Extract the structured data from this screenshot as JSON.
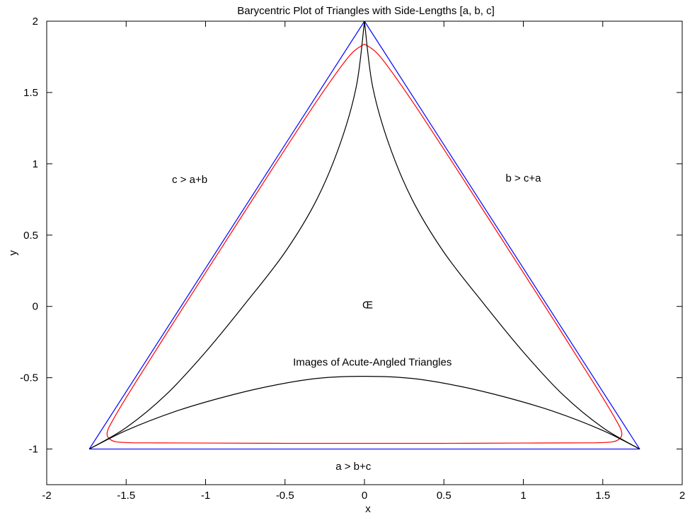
{
  "chart_data": {
    "type": "line",
    "title": "Barycentric Plot of Triangles with Side-Lengths [a, b, c]",
    "xlabel": "x",
    "ylabel": "y",
    "xlim": [
      -2,
      2
    ],
    "ylim": [
      -1.25,
      2.0
    ],
    "x_ticks": [
      -2,
      -1.5,
      -1,
      -0.5,
      0,
      0.5,
      1,
      1.5,
      2
    ],
    "x_tick_labels": [
      "-2",
      "-1.5",
      "-1",
      "-0.5",
      "0",
      "0.5",
      "1",
      "1.5",
      "2"
    ],
    "y_ticks": [
      -1,
      -0.5,
      0,
      0.5,
      1,
      1.5,
      2
    ],
    "y_tick_labels": [
      "-1",
      "-0.5",
      "0",
      "0.5",
      "1",
      "1.5",
      "2"
    ],
    "grid": false,
    "series": [
      {
        "color": "#0000ff",
        "x": [
          -1.732,
          0,
          1.732,
          -1.732
        ],
        "y": [
          -1,
          2,
          -1,
          -1
        ]
      },
      {
        "color": "#ff0000",
        "x": [
          0,
          0.1,
          0.3,
          0.6,
          0.9,
          1.2,
          1.45,
          1.58,
          1.62,
          1.59,
          1.5,
          1.3,
          1.0,
          0.5,
          0,
          -0.5,
          -1.0,
          -1.3,
          -1.5,
          -1.59,
          -1.62,
          -1.58,
          -1.45,
          -1.2,
          -0.9,
          -0.6,
          -0.3,
          -0.1,
          0
        ],
        "y": [
          1.84,
          1.75,
          1.44,
          0.93,
          0.41,
          -0.11,
          -0.55,
          -0.79,
          -0.89,
          -0.94,
          -0.955,
          -0.957,
          -0.958,
          -0.96,
          -0.96,
          -0.96,
          -0.958,
          -0.957,
          -0.955,
          -0.94,
          -0.89,
          -0.79,
          -0.55,
          -0.11,
          0.41,
          0.93,
          1.44,
          1.75,
          1.84
        ]
      },
      {
        "color": "#000000",
        "x": [
          -1.732,
          -1.5,
          -1.25,
          -1.0,
          -0.75,
          -0.5,
          -0.3,
          -0.15,
          -0.05,
          0
        ],
        "y": [
          -1,
          -0.85,
          -0.62,
          -0.32,
          0.02,
          0.38,
          0.75,
          1.15,
          1.55,
          2
        ]
      },
      {
        "color": "#000000",
        "x": [
          0,
          0.05,
          0.15,
          0.3,
          0.5,
          0.75,
          1.0,
          1.25,
          1.5,
          1.732
        ],
        "y": [
          2,
          1.55,
          1.15,
          0.75,
          0.38,
          0.02,
          -0.32,
          -0.62,
          -0.85,
          -1
        ]
      },
      {
        "color": "#000000",
        "x": [
          -1.732,
          -1.5,
          -1.2,
          -0.9,
          -0.6,
          -0.3,
          0,
          0.3,
          0.6,
          0.9,
          1.2,
          1.5,
          1.732
        ],
        "y": [
          -1,
          -0.87,
          -0.74,
          -0.64,
          -0.56,
          -0.505,
          -0.49,
          -0.505,
          -0.56,
          -0.64,
          -0.74,
          -0.87,
          -1
        ]
      }
    ],
    "annotations": [
      {
        "text": "c > a+b",
        "x": -1.1,
        "y": 0.89
      },
      {
        "text": "b > c+a",
        "x": 1.0,
        "y": 0.9
      },
      {
        "text": "Œ",
        "x": 0.02,
        "y": 0.01
      },
      {
        "text": "Images of Acute-Angled Triangles",
        "x": 0.05,
        "y": -0.39
      },
      {
        "text": "a > b+c",
        "x": -0.07,
        "y": -1.12
      }
    ]
  }
}
